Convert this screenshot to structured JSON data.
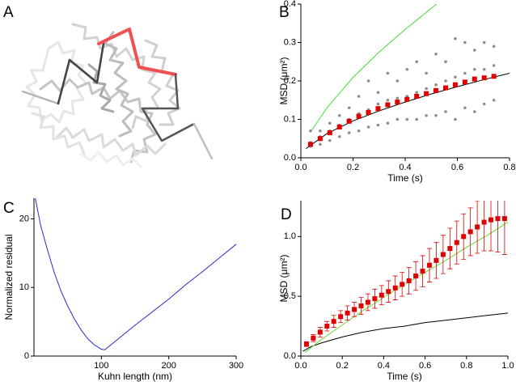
{
  "panel_a": {
    "label": "A"
  },
  "chart_data": [
    {
      "type": "scatter",
      "label": "B",
      "xlabel": "Time (s)",
      "ylabel": "MSD (μm²)",
      "xlim": [
        0,
        0.8
      ],
      "xticks": [
        {
          "value": 0,
          "label": "0.0"
        },
        0.2,
        0.4,
        0.6,
        0.8
      ],
      "ylim": [
        0,
        0.4
      ],
      "yticks": [
        {
          "value": 0,
          "label": "0.0"
        },
        0.1,
        0.2,
        0.3,
        0.4
      ],
      "x": [
        0.037,
        0.074,
        0.111,
        0.148,
        0.185,
        0.222,
        0.259,
        0.296,
        0.333,
        0.37,
        0.407,
        0.444,
        0.481,
        0.518,
        0.555,
        0.592,
        0.629,
        0.666,
        0.703,
        0.74
      ],
      "series": [
        {
          "style": "points",
          "color": "#8c8c8c",
          "values": [
            [
              0.03,
              0.04,
              0.07
            ],
            [
              0.035,
              0.055,
              0.07
            ],
            [
              0.045,
              0.07,
              0.09
            ],
            [
              0.055,
              0.085,
              0.11
            ],
            [
              0.065,
              0.1,
              0.13
            ],
            [
              0.07,
              0.115,
              0.16
            ],
            [
              0.08,
              0.125,
              0.2
            ],
            [
              0.085,
              0.14,
              0.17
            ],
            [
              0.09,
              0.15,
              0.22
            ],
            [
              0.1,
              0.155,
              0.2
            ],
            [
              0.1,
              0.16,
              0.23
            ],
            [
              0.1,
              0.17,
              0.25
            ],
            [
              0.11,
              0.18,
              0.22
            ],
            [
              0.11,
              0.19,
              0.27
            ],
            [
              0.12,
              0.2,
              0.25
            ],
            [
              0.1,
              0.21,
              0.31
            ],
            [
              0.13,
              0.22,
              0.3
            ],
            [
              0.12,
              0.23,
              0.28
            ],
            [
              0.14,
              0.23,
              0.3
            ],
            [
              0.15,
              0.24,
              0.29
            ]
          ]
        },
        {
          "style": "line",
          "color": "#44dd33",
          "x": [
            0.04,
            0.1,
            0.2,
            0.3,
            0.4,
            0.52
          ],
          "values": [
            0.07,
            0.13,
            0.209,
            0.275,
            0.334,
            0.4
          ]
        },
        {
          "style": "line",
          "color": "#000000",
          "x": [
            0.02,
            0.1,
            0.2,
            0.3,
            0.4,
            0.5,
            0.6,
            0.7,
            0.8
          ],
          "values": [
            0.024,
            0.063,
            0.096,
            0.122,
            0.145,
            0.166,
            0.185,
            0.203,
            0.22
          ]
        },
        {
          "style": "markers",
          "color": "#e00000",
          "values": [
            0.035,
            0.05,
            0.065,
            0.08,
            0.095,
            0.108,
            0.118,
            0.128,
            0.138,
            0.145,
            0.152,
            0.16,
            0.167,
            0.175,
            0.182,
            0.19,
            0.197,
            0.205,
            0.208,
            0.212
          ]
        }
      ]
    },
    {
      "type": "line",
      "label": "C",
      "xlabel": "Kuhn length (nm)",
      "ylabel": "Normalized residual",
      "xlim": [
        0,
        300
      ],
      "xticks": [
        100,
        200,
        300
      ],
      "ylim": [
        0,
        23
      ],
      "yticks": [
        0,
        10,
        20
      ],
      "series": [
        {
          "style": "line",
          "color": "#2a2acc",
          "x": [
            2,
            10,
            20,
            30,
            40,
            50,
            60,
            70,
            80,
            90,
            100,
            105,
            110,
            130,
            150,
            175,
            200,
            225,
            250,
            275,
            300
          ],
          "values": [
            23,
            19,
            15.5,
            12.2,
            9.5,
            7.3,
            5.4,
            3.8,
            2.5,
            1.6,
            1.0,
            0.9,
            1.3,
            2.9,
            4.5,
            6.4,
            8.3,
            10.4,
            12.3,
            14.3,
            16.3
          ]
        }
      ]
    },
    {
      "type": "scatter",
      "label": "D",
      "xlabel": "Time (s)",
      "ylabel": "MSD (μm²)",
      "xlim": [
        0,
        1
      ],
      "xticks": [
        {
          "value": 0,
          "label": "0.0"
        },
        0.2,
        0.4,
        0.6,
        0.8,
        {
          "value": 1,
          "label": "1.0"
        }
      ],
      "ylim": [
        0,
        1.3
      ],
      "yticks": [
        {
          "value": 0,
          "label": "0.0"
        },
        0.5,
        {
          "value": 1,
          "label": "1.0"
        }
      ],
      "x": [
        0.027,
        0.06,
        0.093,
        0.126,
        0.159,
        0.192,
        0.225,
        0.258,
        0.291,
        0.324,
        0.357,
        0.39,
        0.423,
        0.456,
        0.489,
        0.522,
        0.555,
        0.588,
        0.621,
        0.654,
        0.687,
        0.72,
        0.753,
        0.786,
        0.819,
        0.852,
        0.885,
        0.918,
        0.951,
        0.984
      ],
      "series": [
        {
          "style": "line",
          "color": "#000000",
          "x": [
            0.01,
            0.05,
            0.1,
            0.2,
            0.3,
            0.4,
            0.5,
            0.6,
            0.7,
            0.8,
            0.9,
            1.0
          ],
          "values": [
            0.04,
            0.08,
            0.11,
            0.16,
            0.2,
            0.23,
            0.25,
            0.28,
            0.3,
            0.32,
            0.34,
            0.36
          ]
        },
        {
          "style": "line",
          "color": "#66dd33",
          "x": [
            0.02,
            0.1,
            0.2,
            0.3,
            0.4,
            0.5,
            0.6,
            0.7,
            0.8,
            0.9,
            1.0
          ],
          "values": [
            0.03,
            0.14,
            0.26,
            0.38,
            0.49,
            0.6,
            0.7,
            0.8,
            0.91,
            1.01,
            1.12
          ]
        },
        {
          "style": "markers",
          "color": "#e00000",
          "values": [
            0.1,
            0.15,
            0.2,
            0.25,
            0.29,
            0.33,
            0.36,
            0.39,
            0.42,
            0.45,
            0.48,
            0.51,
            0.54,
            0.57,
            0.6,
            0.63,
            0.67,
            0.71,
            0.76,
            0.8,
            0.85,
            0.9,
            0.95,
            1.0,
            1.04,
            1.08,
            1.12,
            1.14,
            1.15,
            1.15
          ],
          "errors": [
            0.02,
            0.03,
            0.04,
            0.04,
            0.05,
            0.05,
            0.06,
            0.06,
            0.07,
            0.07,
            0.08,
            0.08,
            0.09,
            0.1,
            0.1,
            0.11,
            0.12,
            0.13,
            0.14,
            0.15,
            0.16,
            0.17,
            0.18,
            0.19,
            0.2,
            0.22,
            0.24,
            0.26,
            0.28,
            0.3
          ]
        }
      ]
    }
  ]
}
